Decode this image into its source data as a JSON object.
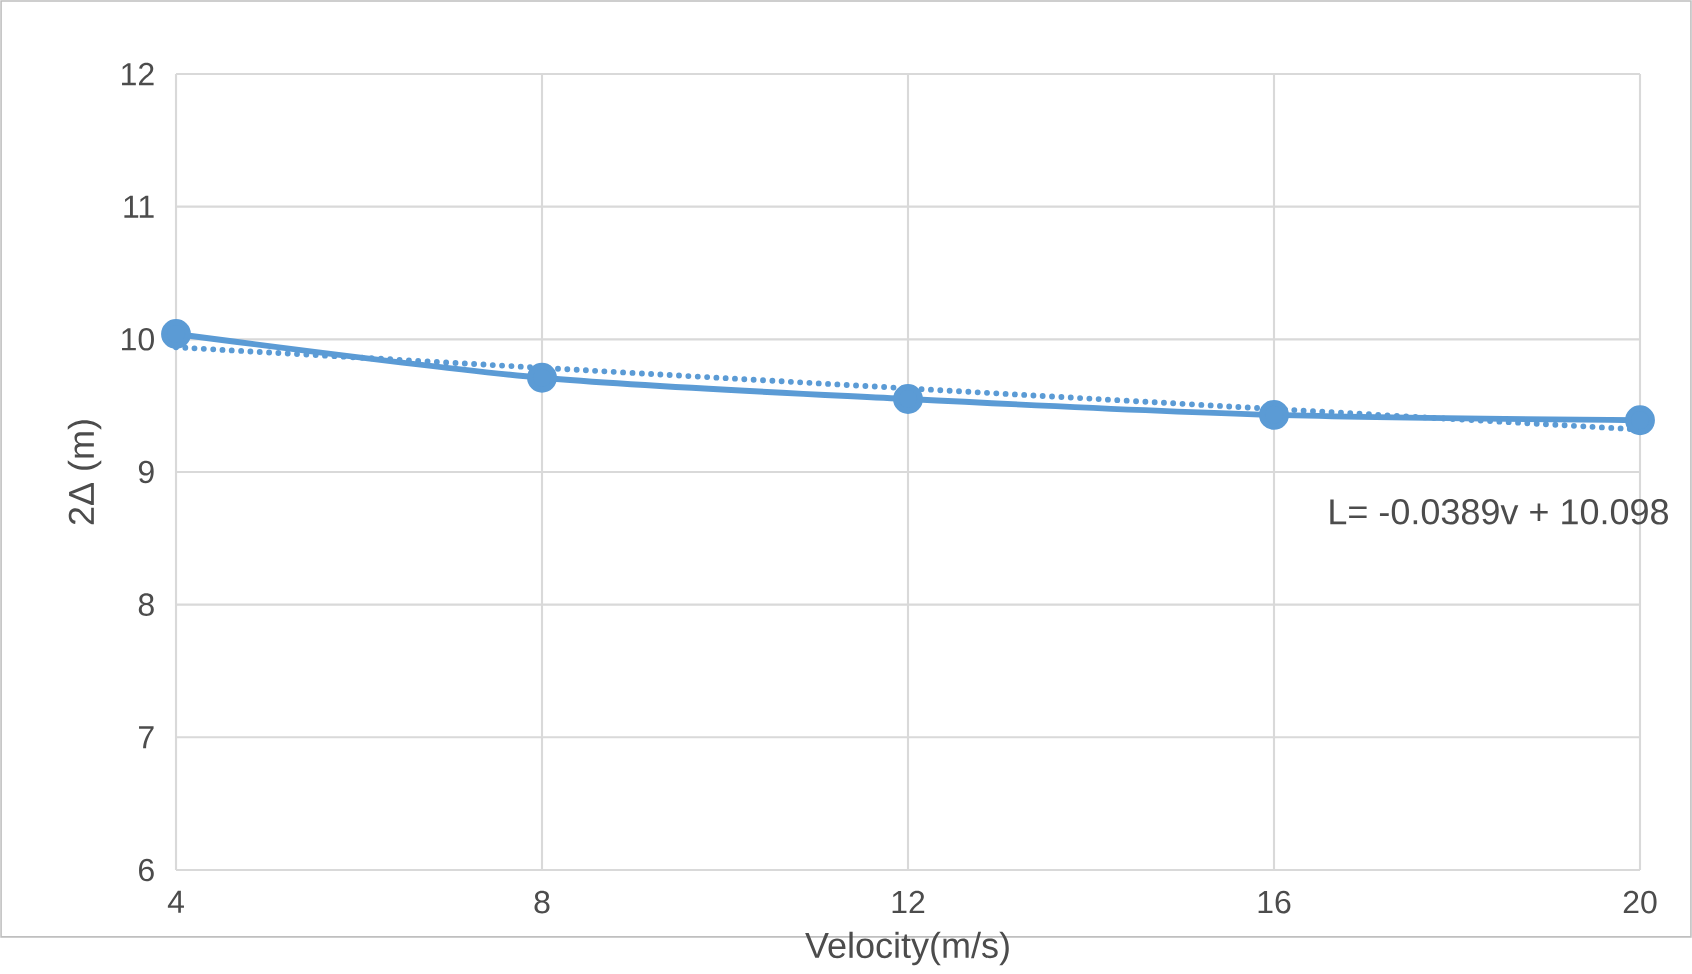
{
  "chart_data": {
    "type": "line",
    "xlabel": "Velocity(m/s)",
    "ylabel": "2Δ (m)",
    "x": [
      4,
      8,
      12,
      16,
      20
    ],
    "series": [
      {
        "color": "#5b9bd5",
        "values": [
          10.04,
          9.71,
          9.55,
          9.43,
          9.39
        ]
      },
      {
        "type": "line",
        "color": "#5b9bd5",
        "x": [
          4,
          20
        ],
        "values": [
          9.94,
          9.32
        ],
        "marker": "none",
        "line_style": "dotted"
      }
    ],
    "xlim": [
      4,
      20
    ],
    "xticks": [
      4,
      8,
      12,
      16,
      20
    ],
    "ylim": [
      6,
      12
    ],
    "yticks": [
      6,
      7,
      8,
      9,
      10,
      11,
      12
    ],
    "grid": true,
    "marker": "circle",
    "line_style": "solid",
    "annotations": [
      "L= -0.0389v + 10.098"
    ]
  }
}
